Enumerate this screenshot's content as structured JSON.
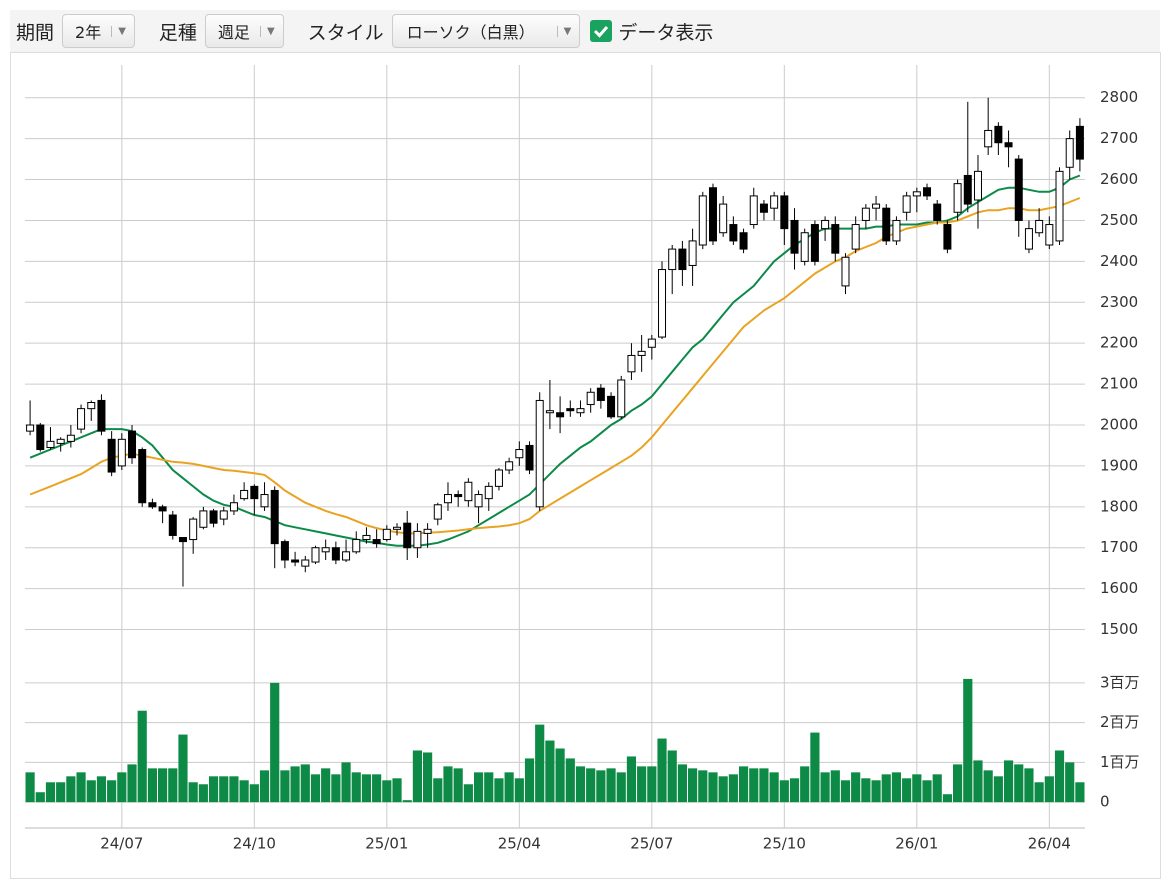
{
  "controls": {
    "period_label": "期間",
    "period": "2年",
    "type_label": "足種",
    "type": "週足",
    "style_label": "スタイル",
    "style": "ローソク（白黒）",
    "show_data": "データ表示"
  },
  "chart_data": {
    "type": "candlestick",
    "categories": [
      null,
      null,
      null,
      null,
      null,
      null,
      null,
      null,
      null,
      "24/07",
      null,
      null,
      null,
      null,
      null,
      null,
      null,
      null,
      null,
      null,
      null,
      null,
      "24/10",
      null,
      null,
      null,
      null,
      null,
      null,
      null,
      null,
      null,
      null,
      null,
      null,
      "25/01",
      null,
      null,
      null,
      null,
      null,
      null,
      null,
      null,
      null,
      null,
      null,
      null,
      "25/04",
      null,
      null,
      null,
      null,
      null,
      null,
      null,
      null,
      null,
      null,
      null,
      null,
      "25/07",
      null,
      null,
      null,
      null,
      null,
      null,
      null,
      null,
      null,
      null,
      null,
      null,
      "25/10",
      null,
      null,
      null,
      null,
      null,
      null,
      null,
      null,
      null,
      null,
      null,
      null,
      "26/01",
      null,
      null,
      null,
      null,
      null,
      null,
      null,
      null,
      null,
      null,
      null,
      null,
      "26/04",
      null,
      null,
      null
    ],
    "open": [
      1985,
      2000,
      1945,
      1955,
      1960,
      1990,
      2040,
      2060,
      1965,
      1900,
      1985,
      1940,
      1810,
      1800,
      1780,
      1725,
      1720,
      1750,
      1790,
      1770,
      1790,
      1820,
      1850,
      1800,
      1840,
      1715,
      1670,
      1655,
      1665,
      1690,
      1700,
      1670,
      1690,
      1720,
      1720,
      1720,
      1745,
      1760,
      1700,
      1735,
      1770,
      1810,
      1830,
      1815,
      1800,
      1820,
      1850,
      1890,
      1920,
      1950,
      1800,
      2030,
      2030,
      2040,
      2030,
      2050,
      2090,
      2070,
      2020,
      2130,
      2170,
      2190,
      2215,
      2380,
      2430,
      2390,
      2440,
      2580,
      2470,
      2490,
      2470,
      2490,
      2540,
      2530,
      2560,
      2500,
      2400,
      2490,
      2480,
      2490,
      2340,
      2430,
      2500,
      2530,
      2530,
      2450,
      2520,
      2560,
      2580,
      2540,
      2490,
      2520,
      2610,
      2550,
      2680,
      2730,
      2690,
      2650,
      2430,
      2470,
      2440,
      2450,
      2630,
      2730
    ],
    "high": [
      2060,
      2005,
      1995,
      1970,
      2000,
      2050,
      2060,
      2075,
      1985,
      1980,
      2000,
      1945,
      1820,
      1805,
      1790,
      1725,
      1775,
      1800,
      1795,
      1800,
      1830,
      1860,
      1855,
      1860,
      1850,
      1720,
      1690,
      1680,
      1705,
      1720,
      1715,
      1720,
      1740,
      1750,
      1745,
      1755,
      1760,
      1790,
      1760,
      1760,
      1810,
      1860,
      1840,
      1870,
      1840,
      1860,
      1895,
      1920,
      1960,
      1960,
      2080,
      2110,
      2070,
      2060,
      2060,
      2090,
      2100,
      2080,
      2120,
      2200,
      2220,
      2220,
      2400,
      2440,
      2450,
      2480,
      2570,
      2590,
      2560,
      2510,
      2480,
      2580,
      2550,
      2570,
      2570,
      2530,
      2480,
      2500,
      2510,
      2510,
      2420,
      2510,
      2540,
      2560,
      2540,
      2510,
      2570,
      2580,
      2590,
      2550,
      2500,
      2600,
      2790,
      2660,
      2800,
      2740,
      2720,
      2660,
      2500,
      2530,
      2510,
      2630,
      2720,
      2750
    ],
    "low": [
      1975,
      1935,
      1940,
      1935,
      1945,
      1980,
      2010,
      1975,
      1875,
      1890,
      1905,
      1800,
      1795,
      1760,
      1720,
      1605,
      1685,
      1745,
      1750,
      1755,
      1780,
      1815,
      1780,
      1790,
      1650,
      1650,
      1655,
      1640,
      1660,
      1670,
      1660,
      1665,
      1685,
      1710,
      1700,
      1715,
      1730,
      1670,
      1675,
      1700,
      1755,
      1790,
      1800,
      1800,
      1760,
      1790,
      1840,
      1880,
      1900,
      1880,
      1790,
      1990,
      1980,
      2020,
      2020,
      2030,
      2040,
      2015,
      2015,
      2110,
      2130,
      2160,
      2210,
      2320,
      2340,
      2340,
      2430,
      2440,
      2460,
      2440,
      2420,
      2480,
      2500,
      2500,
      2440,
      2380,
      2390,
      2390,
      2450,
      2400,
      2320,
      2420,
      2480,
      2500,
      2440,
      2440,
      2500,
      2520,
      2550,
      2490,
      2420,
      2500,
      2520,
      2480,
      2660,
      2660,
      2630,
      2460,
      2420,
      2460,
      2430,
      2440,
      2600,
      2620
    ],
    "close": [
      2000,
      1940,
      1960,
      1965,
      1975,
      2040,
      2055,
      1985,
      1885,
      1965,
      1920,
      1810,
      1800,
      1790,
      1730,
      1715,
      1770,
      1790,
      1760,
      1790,
      1810,
      1840,
      1820,
      1830,
      1710,
      1670,
      1665,
      1670,
      1700,
      1700,
      1670,
      1690,
      1720,
      1730,
      1710,
      1745,
      1750,
      1700,
      1740,
      1745,
      1805,
      1830,
      1825,
      1860,
      1830,
      1850,
      1890,
      1910,
      1940,
      1890,
      2060,
      2035,
      2020,
      2035,
      2040,
      2080,
      2060,
      2020,
      2110,
      2170,
      2180,
      2210,
      2380,
      2430,
      2380,
      2450,
      2560,
      2450,
      2540,
      2450,
      2430,
      2560,
      2520,
      2560,
      2480,
      2420,
      2470,
      2400,
      2500,
      2420,
      2410,
      2490,
      2530,
      2540,
      2450,
      2500,
      2560,
      2570,
      2560,
      2500,
      2430,
      2590,
      2540,
      2620,
      2720,
      2690,
      2680,
      2500,
      2480,
      2500,
      2490,
      2620,
      2700,
      2650
    ],
    "up_color": "#ffffff",
    "down_color": "#000000",
    "ylim": [
      1450,
      2880
    ],
    "yticks": [
      1500,
      1600,
      1700,
      1800,
      1900,
      2000,
      2100,
      2200,
      2300,
      2400,
      2500,
      2600,
      2700,
      2800
    ],
    "grid": true,
    "ma": [
      {
        "color": "#0b8a48",
        "values": [
          1920,
          1930,
          1940,
          1950,
          1960,
          1970,
          1980,
          1990,
          1990,
          1990,
          1985,
          1970,
          1950,
          1920,
          1890,
          1870,
          1850,
          1830,
          1815,
          1805,
          1800,
          1790,
          1780,
          1775,
          1765,
          1755,
          1750,
          1745,
          1740,
          1735,
          1730,
          1725,
          1720,
          1715,
          1712,
          1708,
          1705,
          1705,
          1705,
          1708,
          1712,
          1720,
          1730,
          1740,
          1755,
          1770,
          1785,
          1800,
          1815,
          1830,
          1855,
          1880,
          1905,
          1925,
          1945,
          1960,
          1980,
          2000,
          2015,
          2035,
          2050,
          2070,
          2100,
          2130,
          2160,
          2190,
          2210,
          2240,
          2270,
          2300,
          2320,
          2340,
          2370,
          2400,
          2420,
          2440,
          2455,
          2470,
          2480,
          2480,
          2480,
          2480,
          2480,
          2485,
          2485,
          2490,
          2490,
          2490,
          2495,
          2495,
          2500,
          2510,
          2530,
          2545,
          2560,
          2575,
          2580,
          2580,
          2575,
          2570,
          2570,
          2580,
          2600,
          2610
        ]
      },
      {
        "color": "#e9a321",
        "values": [
          1830,
          1840,
          1850,
          1860,
          1870,
          1880,
          1895,
          1910,
          1920,
          1925,
          1930,
          1925,
          1920,
          1915,
          1910,
          1908,
          1905,
          1900,
          1895,
          1890,
          1888,
          1885,
          1882,
          1878,
          1860,
          1840,
          1825,
          1810,
          1800,
          1790,
          1782,
          1775,
          1765,
          1755,
          1748,
          1742,
          1738,
          1735,
          1735,
          1737,
          1738,
          1740,
          1742,
          1745,
          1748,
          1750,
          1752,
          1755,
          1760,
          1770,
          1790,
          1805,
          1820,
          1835,
          1850,
          1865,
          1880,
          1895,
          1910,
          1925,
          1945,
          1970,
          2000,
          2030,
          2060,
          2090,
          2120,
          2150,
          2180,
          2210,
          2240,
          2260,
          2280,
          2295,
          2310,
          2330,
          2350,
          2370,
          2385,
          2400,
          2410,
          2425,
          2435,
          2445,
          2460,
          2470,
          2480,
          2485,
          2490,
          2495,
          2495,
          2500,
          2510,
          2520,
          2525,
          2525,
          2530,
          2530,
          2525,
          2525,
          2530,
          2535,
          2545,
          2555
        ]
      }
    ],
    "volume": {
      "color": "#0d8a45",
      "ylim": [
        -0.65,
        3.45
      ],
      "yticks": [
        0,
        {
          "value": 1,
          "label": "1百万"
        },
        {
          "value": 2,
          "label": "2百万"
        },
        {
          "value": 3,
          "label": "3百万"
        }
      ],
      "values": [
        0.75,
        0.25,
        0.5,
        0.5,
        0.65,
        0.75,
        0.55,
        0.65,
        0.55,
        0.75,
        0.95,
        2.3,
        0.85,
        0.85,
        0.85,
        1.7,
        0.5,
        0.45,
        0.65,
        0.65,
        0.65,
        0.55,
        0.45,
        0.8,
        3.0,
        0.8,
        0.9,
        0.95,
        0.7,
        0.85,
        0.7,
        1.0,
        0.75,
        0.7,
        0.7,
        0.55,
        0.6,
        0.05,
        1.3,
        1.25,
        0.6,
        0.9,
        0.85,
        0.45,
        0.75,
        0.75,
        0.6,
        0.75,
        0.6,
        1.1,
        1.95,
        1.55,
        1.35,
        1.1,
        0.9,
        0.85,
        0.8,
        0.85,
        0.75,
        1.15,
        0.9,
        0.9,
        1.6,
        1.3,
        0.95,
        0.85,
        0.8,
        0.75,
        0.65,
        0.7,
        0.9,
        0.85,
        0.85,
        0.75,
        0.55,
        0.6,
        0.9,
        1.75,
        0.75,
        0.8,
        0.55,
        0.75,
        0.6,
        0.55,
        0.7,
        0.75,
        0.6,
        0.7,
        0.55,
        0.7,
        0.2,
        0.95,
        3.1,
        1.05,
        0.8,
        0.65,
        1.05,
        0.95,
        0.85,
        0.5,
        0.65,
        1.3,
        1.0,
        0.5
      ]
    }
  }
}
